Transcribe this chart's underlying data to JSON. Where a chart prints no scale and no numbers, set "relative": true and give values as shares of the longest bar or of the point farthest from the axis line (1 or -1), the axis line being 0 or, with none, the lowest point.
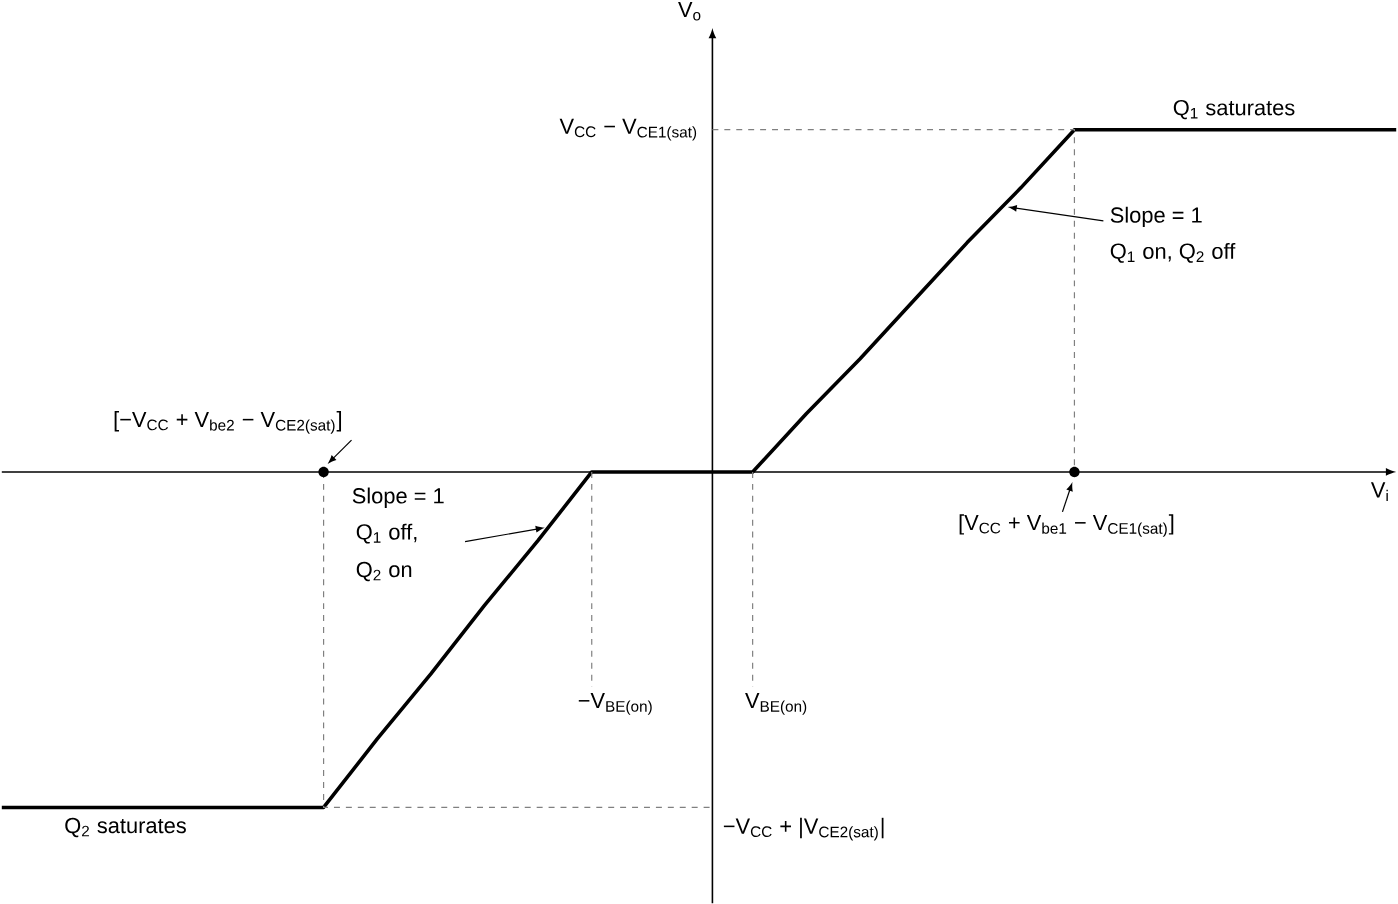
{
  "chart_data": {
    "type": "line",
    "relative": true,
    "xlabel": "V$_{i}$",
    "ylabel": "V$_{o}$",
    "line_style": "solid",
    "marker": "none",
    "categories": [
      null,
      null,
      null,
      null,
      null,
      null,
      null,
      null,
      null,
      null,
      null,
      null,
      null,
      null,
      null,
      null,
      null,
      null,
      null,
      null,
      null,
      null,
      null,
      null,
      null,
      null,
      null
    ],
    "series": [
      {
        "color": "#000000",
        "values": [
          -0.98,
          -0.98,
          -0.98,
          -0.98,
          -0.98,
          -0.98,
          -0.98,
          -0.78,
          -0.59,
          -0.39,
          -0.2,
          0,
          0,
          0,
          0,
          0.17,
          0.33,
          0.5,
          0.67,
          0.83,
          1,
          1,
          1,
          1,
          1,
          1,
          1
        ]
      }
    ],
    "annotations": [
      "V$_{CC}$ − V$_{CE1(sat)}$",
      "Q$_{1}$ saturates",
      "Slope = 1",
      "Q$_{1}$ on, Q$_{2}$ off",
      "[−V$_{CC}$ + V$_{be2}$ − V$_{CE2(sat)}$]",
      "Slope = 1",
      "Q$_{1}$ off,",
      "Q$_{2}$ on",
      "[V$_{CC}$ + V$_{be1}$ − V$_{CE1(sat)}$]",
      "−V$_{BE(on)}$",
      "V$_{BE(on)}$",
      "−V$_{CC}$ + |V$_{CE2(sat)}$|",
      "Q$_{2}$ saturates"
    ]
  }
}
